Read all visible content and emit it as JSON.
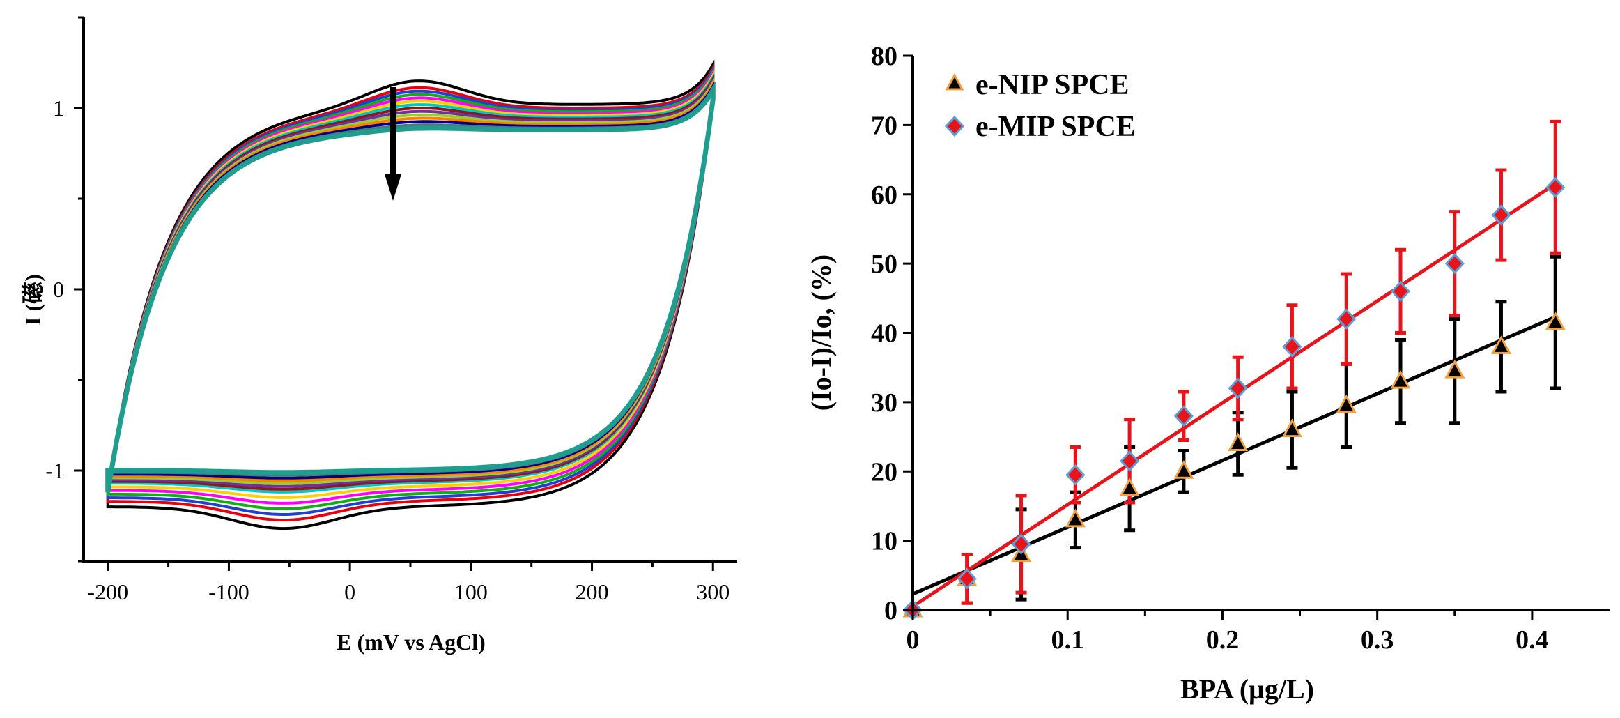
{
  "chart_data": [
    {
      "type": "line",
      "xlabel": "E (mV vs AgCl)",
      "ylabel": "I (礠)",
      "xlim": [
        -220,
        320
      ],
      "ylim": [
        -1.5,
        1.5
      ],
      "xticks": [
        -200,
        -100,
        0,
        100,
        200,
        300
      ],
      "yticks": [
        -1,
        0,
        1
      ],
      "annotation": "downward arrow indicating decreasing current with successive scans",
      "grid": false,
      "series_count": 14,
      "series": [
        {
          "values": [
            1.02,
            -1.2
          ]
        },
        {
          "values": [
            1.0,
            -1.17
          ]
        },
        {
          "values": [
            0.99,
            -1.15
          ]
        },
        {
          "values": [
            0.98,
            -1.13
          ]
        },
        {
          "values": [
            0.97,
            -1.11
          ]
        },
        {
          "values": [
            0.96,
            -1.09
          ]
        },
        {
          "values": [
            0.95,
            -1.07
          ]
        },
        {
          "values": [
            0.94,
            -1.06
          ]
        },
        {
          "values": [
            0.93,
            -1.05
          ]
        },
        {
          "values": [
            0.92,
            -1.04
          ]
        },
        {
          "values": [
            0.91,
            -1.03
          ]
        },
        {
          "values": [
            0.9,
            -1.02
          ]
        },
        {
          "values": [
            0.89,
            -1.01
          ]
        },
        {
          "values": [
            0.88,
            -1.0
          ]
        }
      ],
      "colors": [
        "#000000",
        "#e8000b",
        "#1f3fd6",
        "#10b010",
        "#ff00ff",
        "#ffd000",
        "#00c8c8",
        "#8b1a1a",
        "#7030a0",
        "#9acd32",
        "#ff7f00",
        "#00008b",
        "#4a7a7a",
        "#1f9e8f"
      ]
    },
    {
      "type": "scatter",
      "xlabel": "BPA (μg/L)",
      "ylabel": "(Io-I)/Io, (%)",
      "xlim": [
        0,
        0.45
      ],
      "ylim": [
        0,
        80
      ],
      "xticks": [
        0,
        0.1,
        0.2,
        0.3,
        0.4
      ],
      "yticks": [
        0,
        10,
        20,
        30,
        40,
        50,
        60,
        70,
        80
      ],
      "legend": "top-left",
      "grid": false,
      "x": [
        0,
        0.035,
        0.07,
        0.105,
        0.14,
        0.175,
        0.21,
        0.245,
        0.28,
        0.315,
        0.35,
        0.38,
        0.415
      ],
      "series": [
        {
          "name": "e-NIP SPCE",
          "marker": "triangle",
          "marker_color": "#000000",
          "marker_edge": "#f0a040",
          "line_color": "#000000",
          "values": [
            0,
            4.5,
            8,
            13,
            17.5,
            20,
            24,
            26,
            29.5,
            33,
            34.5,
            38,
            41.5
          ],
          "errors": [
            0.5,
            3.5,
            6.5,
            4,
            6,
            3,
            4.5,
            5.5,
            6,
            6,
            7.5,
            6.5,
            9.5
          ],
          "fit": [
            2.3,
            42.3
          ]
        },
        {
          "name": "e-MIP SPCE",
          "marker": "diamond",
          "marker_color": "#e8141c",
          "marker_edge": "#5a9fd6",
          "line_color": "#e8141c",
          "values": [
            0,
            4.5,
            9.5,
            19.5,
            21.5,
            28,
            32,
            38,
            42,
            46,
            50,
            57,
            61
          ],
          "errors": [
            0.5,
            3.5,
            7,
            4,
            6,
            3.5,
            4.5,
            6,
            6.5,
            6,
            7.5,
            6.5,
            9.5
          ],
          "fit": [
            0.5,
            61.5
          ]
        }
      ]
    }
  ]
}
